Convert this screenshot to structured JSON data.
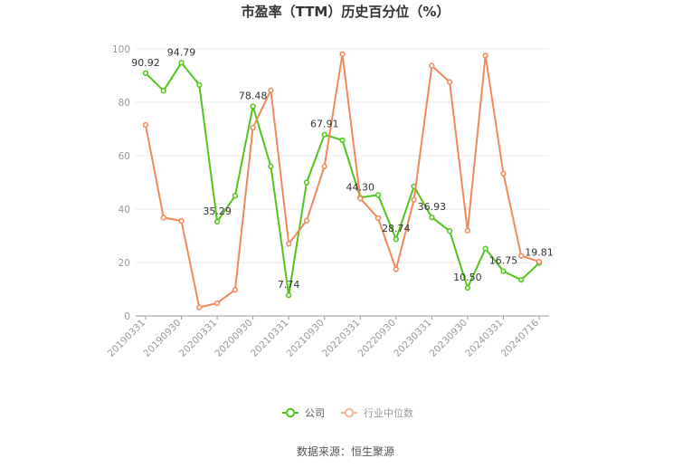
{
  "chart_data": {
    "type": "line",
    "title": "市盈率（TTM）历史百分位（%）",
    "xlabel": "",
    "ylabel": "",
    "ylim": [
      0,
      100
    ],
    "yticks": [
      0,
      20,
      40,
      60,
      80,
      100
    ],
    "x_tick_labels": [
      "20190331",
      "20190930",
      "20200331",
      "20200930",
      "20210331",
      "20210930",
      "20220331",
      "20220930",
      "20230331",
      "20230930",
      "20240331",
      "20240716"
    ],
    "x": [
      "20190331",
      "20190630",
      "20190930",
      "20191231",
      "20200331",
      "20200630",
      "20200930",
      "20201231",
      "20210331",
      "20210630",
      "20210930",
      "20211231",
      "20220331",
      "20220630",
      "20220930",
      "20221231",
      "20230331",
      "20230630",
      "20230930",
      "20231231",
      "20240331",
      "20240630",
      "20240716"
    ],
    "series": [
      {
        "name": "公司",
        "color": "#52c41a",
        "values": [
          90.92,
          84.3,
          94.79,
          86.5,
          35.29,
          45.0,
          78.48,
          56.0,
          7.74,
          50.0,
          67.91,
          65.8,
          44.3,
          45.3,
          28.74,
          48.5,
          36.93,
          31.8,
          10.5,
          25.2,
          16.75,
          13.5,
          19.81
        ],
        "labels": {
          "0": "90.92",
          "2": "94.79",
          "4": "35.29",
          "6": "78.48",
          "8": "7.74",
          "10": "67.91",
          "12": "44.30",
          "14": "28.74",
          "16": "36.93",
          "18": "10.50",
          "20": "16.75",
          "22": "19.81"
        }
      },
      {
        "name": "行业中位数",
        "color": "#f0885a",
        "values": [
          71.5,
          36.8,
          35.6,
          3.2,
          4.8,
          9.8,
          70.5,
          84.5,
          27.0,
          35.7,
          56.0,
          98.0,
          44.0,
          36.6,
          17.5,
          43.5,
          93.7,
          87.6,
          31.9,
          97.5,
          53.3,
          22.5,
          20.3
        ]
      }
    ],
    "legend_position": "bottom",
    "grid": true
  },
  "source": "数据来源：恒生聚源"
}
